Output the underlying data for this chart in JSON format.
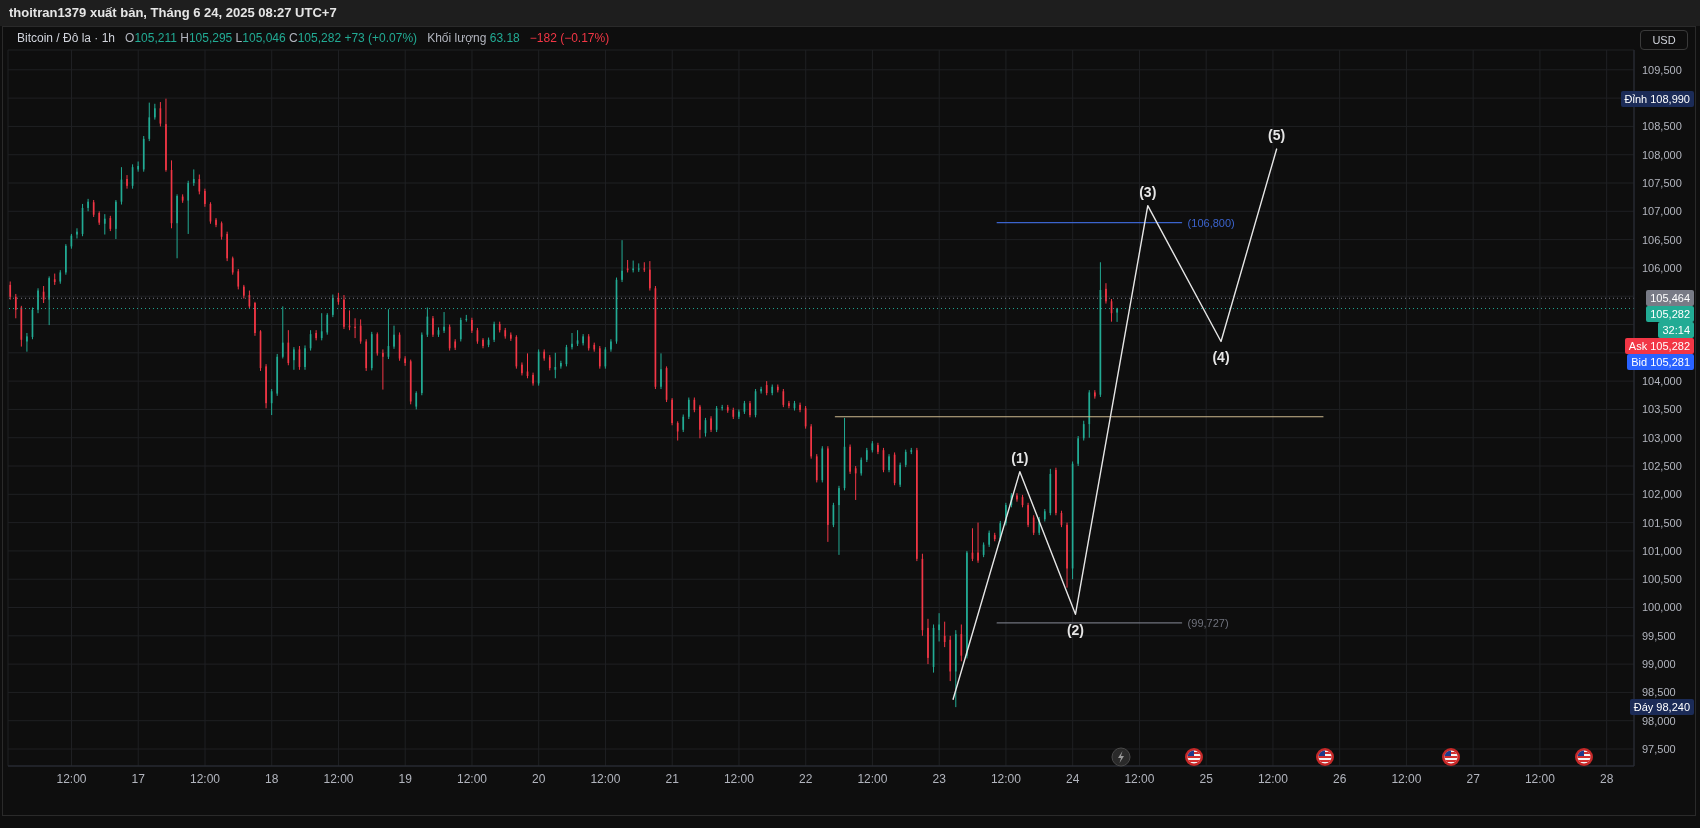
{
  "chart_data": {
    "type": "candlestick",
    "title": "Bitcoin / Đô la · 1h",
    "subtitle": "thoitran1379 xuất bản, Tháng 6 24, 2025 08:27 UTC+7",
    "ylabel": "USD",
    "x": [
      "2025-06-16T01:00",
      "2025-06-16T02:00",
      "2025-06-16T03:00",
      "2025-06-16T04:00",
      "2025-06-16T05:00",
      "2025-06-16T06:00",
      "2025-06-16T07:00",
      "2025-06-16T08:00",
      "2025-06-16T09:00",
      "2025-06-16T10:00",
      "2025-06-16T11:00",
      "2025-06-16T12:00",
      "2025-06-16T13:00",
      "2025-06-16T14:00",
      "2025-06-16T15:00",
      "2025-06-16T16:00",
      "2025-06-16T17:00",
      "2025-06-16T18:00",
      "2025-06-16T19:00",
      "2025-06-16T20:00",
      "2025-06-16T21:00",
      "2025-06-16T22:00",
      "2025-06-16T23:00",
      "2025-06-17T00:00",
      "2025-06-17T01:00",
      "2025-06-17T02:00",
      "2025-06-17T03:00",
      "2025-06-17T04:00",
      "2025-06-17T05:00",
      "2025-06-17T06:00",
      "2025-06-17T07:00",
      "2025-06-17T08:00",
      "2025-06-17T09:00",
      "2025-06-17T10:00",
      "2025-06-17T11:00",
      "2025-06-17T12:00",
      "2025-06-17T13:00",
      "2025-06-17T14:00",
      "2025-06-17T15:00",
      "2025-06-17T16:00",
      "2025-06-17T17:00",
      "2025-06-17T18:00",
      "2025-06-17T19:00",
      "2025-06-17T20:00",
      "2025-06-17T21:00",
      "2025-06-17T22:00",
      "2025-06-17T23:00",
      "2025-06-18T00:00",
      "2025-06-18T01:00",
      "2025-06-18T02:00",
      "2025-06-18T03:00",
      "2025-06-18T04:00",
      "2025-06-18T05:00",
      "2025-06-18T06:00",
      "2025-06-18T07:00",
      "2025-06-18T08:00",
      "2025-06-18T09:00",
      "2025-06-18T10:00",
      "2025-06-18T11:00",
      "2025-06-18T12:00",
      "2025-06-18T13:00",
      "2025-06-18T14:00",
      "2025-06-18T15:00",
      "2025-06-18T16:00",
      "2025-06-18T17:00",
      "2025-06-18T18:00",
      "2025-06-18T19:00",
      "2025-06-18T20:00",
      "2025-06-18T21:00",
      "2025-06-18T22:00",
      "2025-06-18T23:00",
      "2025-06-19T00:00",
      "2025-06-19T01:00",
      "2025-06-19T02:00",
      "2025-06-19T03:00",
      "2025-06-19T04:00",
      "2025-06-19T05:00",
      "2025-06-19T06:00",
      "2025-06-19T07:00",
      "2025-06-19T08:00",
      "2025-06-19T09:00",
      "2025-06-19T10:00",
      "2025-06-19T11:00",
      "2025-06-19T12:00",
      "2025-06-19T13:00",
      "2025-06-19T14:00",
      "2025-06-19T15:00",
      "2025-06-19T16:00",
      "2025-06-19T17:00",
      "2025-06-19T18:00",
      "2025-06-19T19:00",
      "2025-06-19T20:00",
      "2025-06-19T21:00",
      "2025-06-19T22:00",
      "2025-06-19T23:00",
      "2025-06-20T00:00",
      "2025-06-20T01:00",
      "2025-06-20T02:00",
      "2025-06-20T03:00",
      "2025-06-20T04:00",
      "2025-06-20T05:00",
      "2025-06-20T06:00",
      "2025-06-20T07:00",
      "2025-06-20T08:00",
      "2025-06-20T09:00",
      "2025-06-20T10:00",
      "2025-06-20T11:00",
      "2025-06-20T12:00",
      "2025-06-20T13:00",
      "2025-06-20T14:00",
      "2025-06-20T15:00",
      "2025-06-20T16:00",
      "2025-06-20T17:00",
      "2025-06-20T18:00",
      "2025-06-20T19:00",
      "2025-06-20T20:00",
      "2025-06-20T21:00",
      "2025-06-20T22:00",
      "2025-06-20T23:00",
      "2025-06-21T00:00",
      "2025-06-21T01:00",
      "2025-06-21T02:00",
      "2025-06-21T03:00",
      "2025-06-21T04:00",
      "2025-06-21T05:00",
      "2025-06-21T06:00",
      "2025-06-21T07:00",
      "2025-06-21T08:00",
      "2025-06-21T09:00",
      "2025-06-21T10:00",
      "2025-06-21T11:00",
      "2025-06-21T12:00",
      "2025-06-21T13:00",
      "2025-06-21T14:00",
      "2025-06-21T15:00",
      "2025-06-21T16:00",
      "2025-06-21T17:00",
      "2025-06-21T18:00",
      "2025-06-21T19:00",
      "2025-06-21T20:00",
      "2025-06-21T21:00",
      "2025-06-21T22:00",
      "2025-06-21T23:00",
      "2025-06-22T00:00",
      "2025-06-22T01:00",
      "2025-06-22T02:00",
      "2025-06-22T03:00",
      "2025-06-22T04:00",
      "2025-06-22T05:00",
      "2025-06-22T06:00",
      "2025-06-22T07:00",
      "2025-06-22T08:00",
      "2025-06-22T09:00",
      "2025-06-22T10:00",
      "2025-06-22T11:00",
      "2025-06-22T12:00",
      "2025-06-22T13:00",
      "2025-06-22T14:00",
      "2025-06-22T15:00",
      "2025-06-22T16:00",
      "2025-06-22T17:00",
      "2025-06-22T18:00",
      "2025-06-22T19:00",
      "2025-06-22T20:00",
      "2025-06-22T21:00",
      "2025-06-22T22:00",
      "2025-06-22T23:00",
      "2025-06-23T00:00",
      "2025-06-23T01:00",
      "2025-06-23T02:00",
      "2025-06-23T03:00",
      "2025-06-23T04:00",
      "2025-06-23T05:00",
      "2025-06-23T06:00",
      "2025-06-23T07:00",
      "2025-06-23T08:00",
      "2025-06-23T09:00",
      "2025-06-23T10:00",
      "2025-06-23T11:00",
      "2025-06-23T12:00",
      "2025-06-23T13:00",
      "2025-06-23T14:00",
      "2025-06-23T15:00",
      "2025-06-23T16:00",
      "2025-06-23T17:00",
      "2025-06-23T18:00",
      "2025-06-23T19:00",
      "2025-06-23T20:00",
      "2025-06-23T21:00",
      "2025-06-23T22:00",
      "2025-06-23T23:00",
      "2025-06-24T00:00",
      "2025-06-24T01:00",
      "2025-06-24T02:00",
      "2025-06-24T03:00",
      "2025-06-24T04:00",
      "2025-06-24T05:00",
      "2025-06-24T06:00",
      "2025-06-24T07:00",
      "2025-06-24T08:00"
    ],
    "ohlc": [
      [
        105700,
        105760,
        105440,
        105490
      ],
      [
        105490,
        105540,
        105110,
        105260
      ],
      [
        105300,
        105330,
        104610,
        104730
      ],
      [
        104700,
        104850,
        104520,
        104790
      ],
      [
        104780,
        105300,
        104740,
        105260
      ],
      [
        105260,
        105640,
        105200,
        105600
      ],
      [
        105580,
        105680,
        105380,
        105440
      ],
      [
        105440,
        105850,
        104990,
        105820
      ],
      [
        105800,
        105900,
        105700,
        105750
      ],
      [
        105760,
        105960,
        105720,
        105920
      ],
      [
        105920,
        106420,
        105880,
        106390
      ],
      [
        106380,
        106600,
        106340,
        106570
      ],
      [
        106590,
        106700,
        106520,
        106640
      ],
      [
        106600,
        107130,
        106560,
        107060
      ],
      [
        107060,
        107220,
        107000,
        107170
      ],
      [
        107160,
        107200,
        106900,
        106940
      ],
      [
        106970,
        107000,
        106760,
        106800
      ],
      [
        106780,
        106950,
        106590,
        106870
      ],
      [
        106880,
        106920,
        106650,
        106690
      ],
      [
        106690,
        107200,
        106510,
        107170
      ],
      [
        107170,
        107780,
        107120,
        107560
      ],
      [
        107570,
        107640,
        107400,
        107450
      ],
      [
        107450,
        107830,
        107400,
        107780
      ],
      [
        107740,
        107880,
        107700,
        107800
      ],
      [
        107740,
        108330,
        107700,
        108280
      ],
      [
        108280,
        108920,
        108240,
        108660
      ],
      [
        108660,
        108900,
        108620,
        108820
      ],
      [
        108820,
        108930,
        108500,
        108550
      ],
      [
        108540,
        108990,
        107700,
        107730
      ],
      [
        107730,
        107900,
        106700,
        106790
      ],
      [
        106790,
        107300,
        106170,
        107270
      ],
      [
        107260,
        107300,
        107150,
        107190
      ],
      [
        107190,
        107540,
        106600,
        107500
      ],
      [
        107500,
        107740,
        107450,
        107570
      ],
      [
        107570,
        107650,
        107300,
        107350
      ],
      [
        107360,
        107400,
        107080,
        107130
      ],
      [
        107130,
        107160,
        106780,
        106820
      ],
      [
        106850,
        106880,
        106720,
        106760
      ],
      [
        106790,
        106820,
        106500,
        106550
      ],
      [
        106600,
        106640,
        106120,
        106170
      ],
      [
        106170,
        106200,
        105880,
        105920
      ],
      [
        105940,
        105980,
        105620,
        105670
      ],
      [
        105670,
        105700,
        105460,
        105510
      ],
      [
        105520,
        105600,
        105280,
        105320
      ],
      [
        105380,
        105400,
        104800,
        104850
      ],
      [
        104880,
        104900,
        104180,
        104230
      ],
      [
        104260,
        104300,
        103520,
        103610
      ],
      [
        103610,
        103860,
        103400,
        103820
      ],
      [
        103780,
        104480,
        103740,
        104430
      ],
      [
        104430,
        105320,
        104400,
        104680
      ],
      [
        104680,
        104900,
        104280,
        104320
      ],
      [
        104370,
        104600,
        104200,
        104560
      ],
      [
        104560,
        104620,
        104200,
        104250
      ],
      [
        104250,
        104630,
        104200,
        104580
      ],
      [
        104580,
        104900,
        104540,
        104830
      ],
      [
        104850,
        104900,
        104720,
        104760
      ],
      [
        104760,
        105200,
        104720,
        104880
      ],
      [
        104860,
        105200,
        104820,
        105170
      ],
      [
        105170,
        105530,
        105130,
        105470
      ],
      [
        105470,
        105560,
        105350,
        105400
      ],
      [
        105440,
        105520,
        104920,
        104960
      ],
      [
        104980,
        105250,
        104900,
        104950
      ],
      [
        104960,
        105110,
        104760,
        104940
      ],
      [
        104980,
        105090,
        104660,
        104700
      ],
      [
        104700,
        104740,
        104180,
        104230
      ],
      [
        104230,
        104870,
        104190,
        104830
      ],
      [
        104830,
        104860,
        104450,
        104490
      ],
      [
        104500,
        104560,
        103850,
        104430
      ],
      [
        104430,
        105270,
        104390,
        104620
      ],
      [
        104610,
        104980,
        104570,
        104820
      ],
      [
        104820,
        104860,
        104360,
        104400
      ],
      [
        104400,
        104440,
        104270,
        104320
      ],
      [
        104350,
        104380,
        103590,
        103640
      ],
      [
        103550,
        103820,
        103500,
        103790
      ],
      [
        103790,
        104860,
        103750,
        104820
      ],
      [
        104820,
        105300,
        104780,
        105140
      ],
      [
        105110,
        105150,
        104780,
        104820
      ],
      [
        104820,
        104950,
        104780,
        104900
      ],
      [
        104890,
        105220,
        104850,
        104960
      ],
      [
        104960,
        105000,
        104540,
        104580
      ],
      [
        104700,
        104740,
        104550,
        104590
      ],
      [
        104740,
        105120,
        104700,
        105080
      ],
      [
        105090,
        105170,
        105050,
        105100
      ],
      [
        105080,
        105120,
        104850,
        104890
      ],
      [
        104900,
        104940,
        104660,
        104700
      ],
      [
        104730,
        104760,
        104580,
        104620
      ],
      [
        104640,
        104770,
        104600,
        104730
      ],
      [
        104730,
        105050,
        104690,
        105010
      ],
      [
        105010,
        105050,
        104860,
        104900
      ],
      [
        104900,
        104940,
        104750,
        104790
      ],
      [
        104820,
        104860,
        104710,
        104750
      ],
      [
        104780,
        104810,
        104220,
        104260
      ],
      [
        104290,
        104330,
        104100,
        104140
      ],
      [
        104170,
        104490,
        104050,
        104090
      ],
      [
        104110,
        104150,
        103920,
        103960
      ],
      [
        103960,
        104560,
        103920,
        104520
      ],
      [
        104520,
        104560,
        104360,
        104400
      ],
      [
        104420,
        104460,
        104190,
        104230
      ],
      [
        104200,
        104500,
        104050,
        104250
      ],
      [
        104260,
        104360,
        104220,
        104320
      ],
      [
        104300,
        104640,
        104260,
        104600
      ],
      [
        104600,
        104850,
        104560,
        104660
      ],
      [
        104660,
        104900,
        104620,
        104720
      ],
      [
        104670,
        104830,
        104630,
        104790
      ],
      [
        104790,
        104830,
        104540,
        104580
      ],
      [
        104640,
        104680,
        104520,
        104560
      ],
      [
        104580,
        104620,
        104220,
        104260
      ],
      [
        104260,
        104600,
        104220,
        104560
      ],
      [
        104560,
        104740,
        104520,
        104700
      ],
      [
        104700,
        105830,
        104660,
        105790
      ],
      [
        105790,
        106490,
        105750,
        105950
      ],
      [
        105990,
        106140,
        105920,
        105960
      ],
      [
        105960,
        106130,
        105920,
        105990
      ],
      [
        105970,
        106080,
        105930,
        105990
      ],
      [
        105990,
        106100,
        105930,
        105970
      ],
      [
        105970,
        106120,
        105600,
        105640
      ],
      [
        105640,
        105680,
        103860,
        103900
      ],
      [
        103900,
        104490,
        103860,
        104210
      ],
      [
        104230,
        104260,
        103630,
        103670
      ],
      [
        103670,
        103700,
        103220,
        103260
      ],
      [
        103260,
        103290,
        102950,
        103110
      ],
      [
        103140,
        103410,
        103100,
        103370
      ],
      [
        103370,
        103710,
        103330,
        103670
      ],
      [
        103670,
        103710,
        103450,
        103490
      ],
      [
        103550,
        103580,
        102990,
        103140
      ],
      [
        103080,
        103350,
        103020,
        103310
      ],
      [
        103340,
        103380,
        103100,
        103140
      ],
      [
        103140,
        103560,
        103100,
        103520
      ],
      [
        103520,
        103580,
        103480,
        103540
      ],
      [
        103540,
        103580,
        103440,
        103480
      ],
      [
        103490,
        103530,
        103330,
        103370
      ],
      [
        103370,
        103500,
        103330,
        103460
      ],
      [
        103460,
        103650,
        103420,
        103610
      ],
      [
        103610,
        103650,
        103360,
        103400
      ],
      [
        103400,
        103860,
        103360,
        103820
      ],
      [
        103820,
        103900,
        103780,
        103860
      ],
      [
        103930,
        104000,
        103750,
        103790
      ],
      [
        103790,
        103940,
        103750,
        103900
      ],
      [
        103900,
        103940,
        103800,
        103840
      ],
      [
        103820,
        103860,
        103540,
        103580
      ],
      [
        103610,
        103650,
        103520,
        103560
      ],
      [
        103520,
        103650,
        103480,
        103610
      ],
      [
        103580,
        103620,
        103450,
        103490
      ],
      [
        103520,
        103560,
        103160,
        103200
      ],
      [
        103200,
        103240,
        102630,
        102670
      ],
      [
        102670,
        102710,
        102210,
        102250
      ],
      [
        102250,
        102850,
        102210,
        102810
      ],
      [
        102810,
        102850,
        101160,
        101460
      ],
      [
        101460,
        101850,
        101420,
        101810
      ],
      [
        101810,
        102150,
        100930,
        102110
      ],
      [
        102110,
        103350,
        102070,
        102840
      ],
      [
        102840,
        102880,
        102360,
        102400
      ],
      [
        102460,
        102500,
        101900,
        102370
      ],
      [
        102370,
        102650,
        102330,
        102610
      ],
      [
        102610,
        102820,
        102570,
        102780
      ],
      [
        102780,
        102940,
        102740,
        102900
      ],
      [
        102870,
        102910,
        102710,
        102750
      ],
      [
        102780,
        102820,
        102390,
        102430
      ],
      [
        102430,
        102710,
        102390,
        102670
      ],
      [
        102700,
        102740,
        102160,
        102200
      ],
      [
        102170,
        102560,
        102130,
        102520
      ],
      [
        102520,
        102790,
        102480,
        102750
      ],
      [
        102750,
        102820,
        102710,
        102780
      ],
      [
        102780,
        102820,
        100820,
        100860
      ],
      [
        100860,
        100950,
        99500,
        99600
      ],
      [
        99640,
        99800,
        99000,
        99110
      ],
      [
        98950,
        99700,
        98850,
        99640
      ],
      [
        99600,
        99900,
        99400,
        99700
      ],
      [
        99500,
        99750,
        99300,
        99390
      ],
      [
        99430,
        99500,
        98700,
        98870
      ],
      [
        98870,
        99600,
        98240,
        99530
      ],
      [
        99530,
        99700,
        99050,
        99150
      ],
      [
        99150,
        101000,
        99100,
        100970
      ],
      [
        100970,
        101400,
        100820,
        100860
      ],
      [
        100970,
        101500,
        100790,
        100830
      ],
      [
        100930,
        101150,
        100890,
        101110
      ],
      [
        101110,
        101360,
        101070,
        101320
      ],
      [
        101280,
        101320,
        101170,
        101210
      ],
      [
        101210,
        101530,
        101170,
        101490
      ],
      [
        101490,
        101850,
        101450,
        101810
      ],
      [
        101810,
        102020,
        101770,
        101980
      ],
      [
        101980,
        102020,
        101870,
        101910
      ],
      [
        101950,
        101990,
        101770,
        101810
      ],
      [
        101810,
        101850,
        101420,
        101460
      ],
      [
        101590,
        101630,
        101280,
        101320
      ],
      [
        101320,
        101600,
        101280,
        101560
      ],
      [
        101560,
        101740,
        101520,
        101700
      ],
      [
        101670,
        102450,
        101630,
        102360
      ],
      [
        102430,
        102470,
        101630,
        101670
      ],
      [
        101670,
        101710,
        101420,
        101460
      ],
      [
        101460,
        101500,
        100350,
        100690
      ],
      [
        100690,
        102580,
        100500,
        102540
      ],
      [
        102540,
        103030,
        102500,
        102990
      ],
      [
        102990,
        103300,
        102950,
        103240
      ],
      [
        103240,
        103840,
        103000,
        103800
      ],
      [
        103800,
        103840,
        103690,
        103730
      ],
      [
        103760,
        106100,
        103720,
        105610
      ],
      [
        105630,
        105730,
        105370,
        105410
      ],
      [
        105410,
        105450,
        105050,
        105200
      ],
      [
        105211,
        105295,
        105046,
        105282
      ]
    ],
    "colors": [
      "#f23645",
      "#f23645",
      "#f23645",
      "#22ab94",
      "#22ab94",
      "#22ab94",
      "#f23645",
      "#22ab94",
      "#f23645",
      "#22ab94",
      "#22ab94",
      "#22ab94",
      "#22ab94",
      "#22ab94",
      "#22ab94",
      "#f23645",
      "#f23645",
      "#22ab94",
      "#f23645",
      "#22ab94",
      "#22ab94",
      "#f23645",
      "#22ab94",
      "#22ab94",
      "#22ab94",
      "#22ab94",
      "#22ab94",
      "#f23645",
      "#f23645",
      "#f23645",
      "#22ab94",
      "#f23645",
      "#22ab94",
      "#22ab94",
      "#f23645",
      "#f23645",
      "#f23645",
      "#f23645",
      "#f23645",
      "#f23645",
      "#f23645",
      "#f23645",
      "#f23645",
      "#f23645",
      "#f23645",
      "#f23645",
      "#f23645",
      "#22ab94",
      "#22ab94",
      "#22ab94",
      "#f23645",
      "#22ab94",
      "#f23645",
      "#22ab94",
      "#22ab94",
      "#f23645",
      "#22ab94",
      "#22ab94",
      "#22ab94",
      "#f23645",
      "#f23645",
      "#f23645",
      "#f23645",
      "#f23645",
      "#f23645",
      "#22ab94",
      "#f23645",
      "#f23645",
      "#22ab94",
      "#22ab94",
      "#f23645",
      "#f23645",
      "#f23645",
      "#22ab94",
      "#22ab94",
      "#22ab94",
      "#f23645",
      "#22ab94",
      "#22ab94",
      "#f23645",
      "#f23645",
      "#22ab94",
      "#22ab94",
      "#f23645",
      "#f23645",
      "#f23645",
      "#22ab94",
      "#22ab94",
      "#f23645",
      "#f23645",
      "#f23645",
      "#f23645",
      "#f23645",
      "#f23645",
      "#f23645",
      "#22ab94",
      "#f23645",
      "#f23645",
      "#22ab94",
      "#22ab94",
      "#22ab94",
      "#22ab94",
      "#22ab94",
      "#22ab94",
      "#f23645",
      "#f23645",
      "#f23645",
      "#22ab94",
      "#22ab94",
      "#22ab94",
      "#22ab94",
      "#f23645",
      "#22ab94",
      "#22ab94",
      "#f23645",
      "#f23645",
      "#f23645",
      "#22ab94",
      "#f23645",
      "#f23645",
      "#f23645",
      "#22ab94",
      "#22ab94",
      "#f23645",
      "#f23645",
      "#22ab94",
      "#f23645",
      "#22ab94",
      "#22ab94",
      "#f23645",
      "#f23645",
      "#22ab94",
      "#22ab94",
      "#f23645",
      "#22ab94",
      "#22ab94",
      "#f23645",
      "#22ab94",
      "#f23645",
      "#f23645",
      "#f23645",
      "#22ab94",
      "#f23645",
      "#f23645",
      "#f23645",
      "#f23645",
      "#22ab94",
      "#f23645",
      "#22ab94",
      "#22ab94",
      "#22ab94",
      "#f23645",
      "#f23645",
      "#22ab94",
      "#22ab94",
      "#22ab94",
      "#f23645",
      "#f23645",
      "#22ab94",
      "#f23645",
      "#22ab94",
      "#22ab94",
      "#22ab94",
      "#f23645",
      "#f23645",
      "#f23645",
      "#22ab94",
      "#22ab94",
      "#f23645",
      "#f23645",
      "#22ab94",
      "#f23645",
      "#22ab94",
      "#f23645",
      "#f23645",
      "#22ab94",
      "#22ab94",
      "#f23645",
      "#22ab94",
      "#22ab94",
      "#22ab94",
      "#f23645",
      "#f23645",
      "#f23645",
      "#f23645",
      "#22ab94",
      "#22ab94",
      "#22ab94",
      "#f23645",
      "#f23645",
      "#f23645",
      "#22ab94",
      "#22ab94",
      "#22ab94",
      "#22ab94",
      "#f23645",
      "#22ab94",
      "#f23645",
      "#f23645",
      "#22ab94"
    ],
    "series": [
      {
        "type": "line",
        "x": [
          "2025-06-22T05:20",
          "2025-06-25T21:00"
        ],
        "values": [
          103370,
          103370
        ],
        "color": "#cdb98e"
      },
      {
        "type": "line",
        "x": [
          "2025-06-23T10:25",
          "2025-06-24T19:35"
        ],
        "values": [
          106800,
          106800
        ],
        "color": "#3b63cc",
        "value_labels": [
          null,
          "(106,800)"
        ]
      },
      {
        "type": "line",
        "x": [
          "2025-06-23T10:25",
          "2025-06-24T19:35"
        ],
        "values": [
          99727,
          99727
        ],
        "color": "#6f727c",
        "value_labels": [
          null,
          "(99,727)"
        ]
      },
      {
        "type": "line",
        "x": [
          "2025-06-23T02:30",
          "2025-06-23T14:30",
          "2025-06-24T00:30",
          "2025-06-24T13:30",
          "2025-06-25T02:40",
          "2025-06-25T12:40"
        ],
        "values": [
          98380,
          102400,
          99880,
          107100,
          104700,
          108100
        ],
        "color": "#e6e6e6"
      }
    ],
    "ref_lines": [
      {
        "axis": "y",
        "value": 105464,
        "label": "105,464",
        "color": "#787b86",
        "line_style": "dotted"
      },
      {
        "axis": "y",
        "value": 105282,
        "label": "105,282",
        "color": "#22ab94",
        "line_style": "dotted"
      }
    ],
    "annotations": [
      "O105,211 H105,295 L105,046 C105,282 +73 (+0.07%)",
      "Khối lượng 63.18",
      "−182 (−0.17%)",
      "Đỉnh 108,990",
      "32:14",
      "Ask 105,282",
      "Bid 105,281",
      "Đáy 98,240",
      {
        "text": "(1)",
        "x": "2025-06-23T14:30",
        "y": 102400
      },
      {
        "text": "(2)",
        "x": "2025-06-24T00:30",
        "y": 99880
      },
      {
        "text": "(3)",
        "x": "2025-06-24T13:30",
        "y": 107100
      },
      {
        "text": "(4)",
        "x": "2025-06-25T02:40",
        "y": 104700
      },
      {
        "text": "(5)",
        "x": "2025-06-25T12:40",
        "y": 108100
      }
    ],
    "xlim": [
      "2025-06-16T00:35",
      "2025-06-28T04:55"
    ],
    "xticks": [
      {
        "value": "2025-06-16T12:00",
        "label": "12:00"
      },
      {
        "value": "2025-06-17T00:00",
        "label": "17"
      },
      {
        "value": "2025-06-17T12:00",
        "label": "12:00"
      },
      {
        "value": "2025-06-18T00:00",
        "label": "18"
      },
      {
        "value": "2025-06-18T12:00",
        "label": "12:00"
      },
      {
        "value": "2025-06-19T00:00",
        "label": "19"
      },
      {
        "value": "2025-06-19T12:00",
        "label": "12:00"
      },
      {
        "value": "2025-06-20T00:00",
        "label": "20"
      },
      {
        "value": "2025-06-20T12:00",
        "label": "12:00"
      },
      {
        "value": "2025-06-21T00:00",
        "label": "21"
      },
      {
        "value": "2025-06-21T12:00",
        "label": "12:00"
      },
      {
        "value": "2025-06-22T00:00",
        "label": "22"
      },
      {
        "value": "2025-06-22T12:00",
        "label": "12:00"
      },
      {
        "value": "2025-06-23T00:00",
        "label": "23"
      },
      {
        "value": "2025-06-23T12:00",
        "label": "12:00"
      },
      {
        "value": "2025-06-24T00:00",
        "label": "24"
      },
      {
        "value": "2025-06-24T12:00",
        "label": "12:00"
      },
      {
        "value": "2025-06-25T00:00",
        "label": "25"
      },
      {
        "value": "2025-06-25T12:00",
        "label": "12:00"
      },
      {
        "value": "2025-06-26T00:00",
        "label": "26"
      },
      {
        "value": "2025-06-26T12:00",
        "label": "12:00"
      },
      {
        "value": "2025-06-27T00:00",
        "label": "27"
      },
      {
        "value": "2025-06-27T12:00",
        "label": "12:00"
      },
      {
        "value": "2025-06-28T00:00",
        "label": "28"
      }
    ],
    "ylim": [
      97200,
      109850
    ],
    "yticks": [
      {
        "value": 97500,
        "label": "97,500"
      },
      {
        "value": 98000,
        "label": "98,000"
      },
      {
        "value": 98500,
        "label": "98,500"
      },
      {
        "value": 99000,
        "label": "99,000"
      },
      {
        "value": 99500,
        "label": "99,500"
      },
      {
        "value": 100000,
        "label": "100,000"
      },
      {
        "value": 100500,
        "label": "100,500"
      },
      {
        "value": 101000,
        "label": "101,000"
      },
      {
        "value": 101500,
        "label": "101,500"
      },
      {
        "value": 102000,
        "label": "102,000"
      },
      {
        "value": 102500,
        "label": "102,500"
      },
      {
        "value": 103000,
        "label": "103,000"
      },
      {
        "value": 103500,
        "label": "103,500"
      },
      {
        "value": 104000,
        "label": "104,000"
      },
      {
        "value": 104500,
        "label": null
      },
      {
        "value": 105000,
        "label": null
      },
      {
        "value": 105500,
        "label": null
      },
      {
        "value": 106000,
        "label": "106,000"
      },
      {
        "value": 106500,
        "label": "106,500"
      },
      {
        "value": 107000,
        "label": "107,000"
      },
      {
        "value": 107500,
        "label": "107,500"
      },
      {
        "value": 108000,
        "label": "108,000"
      },
      {
        "value": 108500,
        "label": "108,500"
      },
      {
        "value": 109000,
        "label": null
      },
      {
        "value": 109500,
        "label": "109,500"
      }
    ],
    "grid": true
  }
}
